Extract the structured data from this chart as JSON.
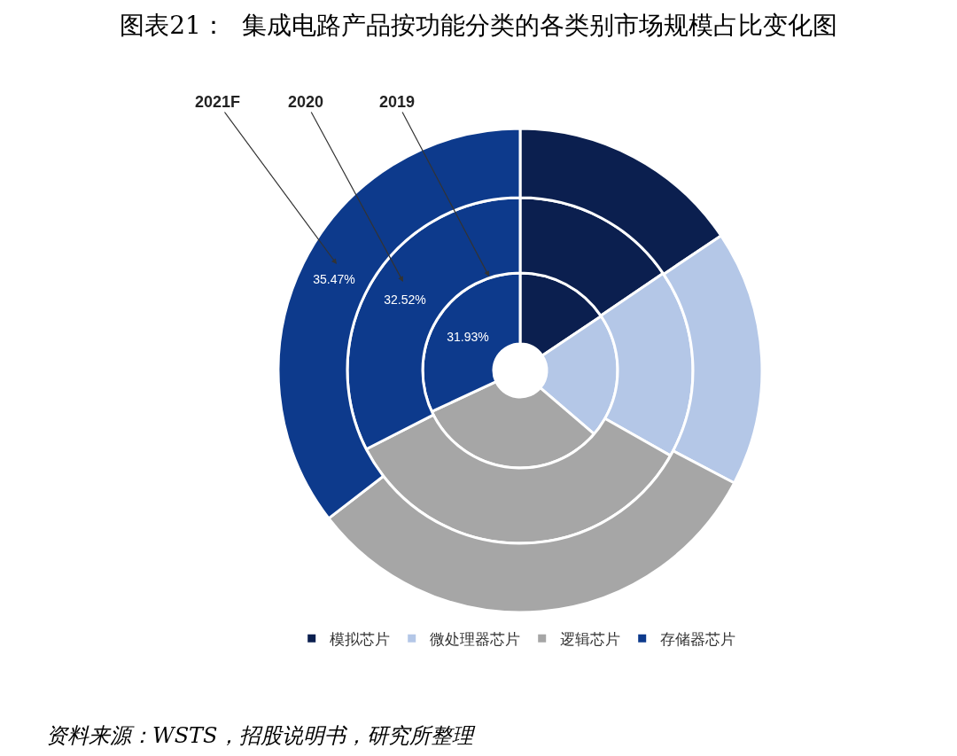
{
  "chart_data": {
    "type": "donut",
    "title": "图表21：  集成电路产品按功能分类的各类别市场规模占比变化图",
    "categories": [
      "模拟芯片",
      "微处理器芯片",
      "逻辑芯片",
      "存储器芯片"
    ],
    "colors": [
      "#0b1f4f",
      "#b4c7e7",
      "#a6a6a6",
      "#0d3a8c"
    ],
    "legend": "bottom",
    "series": [
      {
        "name": "2019",
        "values": [
          15.6,
          20.7,
          31.77,
          31.93
        ],
        "value_labels": [
          null,
          null,
          null,
          "31.93%"
        ]
      },
      {
        "name": "2020",
        "values": [
          15.5,
          17.7,
          34.28,
          32.52
        ],
        "value_labels": [
          null,
          null,
          null,
          "32.52%"
        ]
      },
      {
        "name": "2021F",
        "values": [
          15.6,
          17.1,
          31.83,
          35.47
        ],
        "value_labels": [
          null,
          null,
          null,
          "35.47%"
        ]
      }
    ],
    "annotations": [
      "资料来源：WSTS，招股说明书，研究所整理"
    ]
  }
}
